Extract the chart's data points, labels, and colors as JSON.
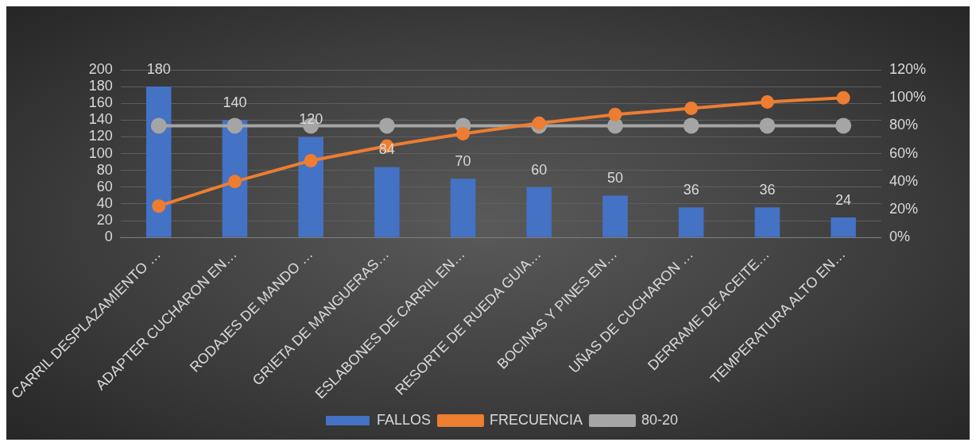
{
  "chart_data": {
    "type": "bar",
    "categories": [
      "CARRIL DESPLAZAMIENTO …",
      "ADAPTER CUCHARON EN…",
      "RODAJES DE MANDO …",
      "GRIETA DE MANGUERAS…",
      "ESLABONES DE CARRIL EN…",
      "RESORTE DE RUEDA GUIA…",
      "BOCINAS Y PINES EN…",
      "UÑAS DE CUCHARON …",
      "DERRAME DE ACEITE…",
      "TEMPERATURA ALTO EN…"
    ],
    "series": [
      {
        "name": "FALLOS",
        "color": "#4472c4",
        "values": [
          180,
          140,
          120,
          84,
          70,
          60,
          50,
          36,
          36,
          24
        ],
        "value_labels": [
          "180",
          "140",
          "120",
          "84",
          "70",
          "60",
          "50",
          "36",
          "36",
          "24"
        ]
      },
      {
        "name": "FRECUENCIA",
        "type": "line",
        "axis": "y2",
        "color": "#ed7d31",
        "values": [
          22.5,
          40,
          55,
          65.5,
          74.3,
          81.8,
          88,
          92.5,
          97,
          100
        ]
      },
      {
        "name": "80-20",
        "type": "line",
        "axis": "y2",
        "color": "#a5a5a5",
        "values": [
          80,
          80,
          80,
          80,
          80,
          80,
          80,
          80,
          80,
          80
        ]
      }
    ],
    "ylim": [
      0,
      200
    ],
    "yticks": [
      0,
      20,
      40,
      60,
      80,
      100,
      120,
      140,
      160,
      180,
      200
    ],
    "y2lim": [
      0,
      120
    ],
    "y2ticks": [
      {
        "value": 0,
        "label": "0%"
      },
      {
        "value": 20,
        "label": "20%"
      },
      {
        "value": 40,
        "label": "40%"
      },
      {
        "value": 60,
        "label": "60%"
      },
      {
        "value": 80,
        "label": "80%"
      },
      {
        "value": 100,
        "label": "100%"
      },
      {
        "value": 120,
        "label": "120%"
      }
    ],
    "grid": "y",
    "legend": "bottom",
    "marker": "circle"
  }
}
